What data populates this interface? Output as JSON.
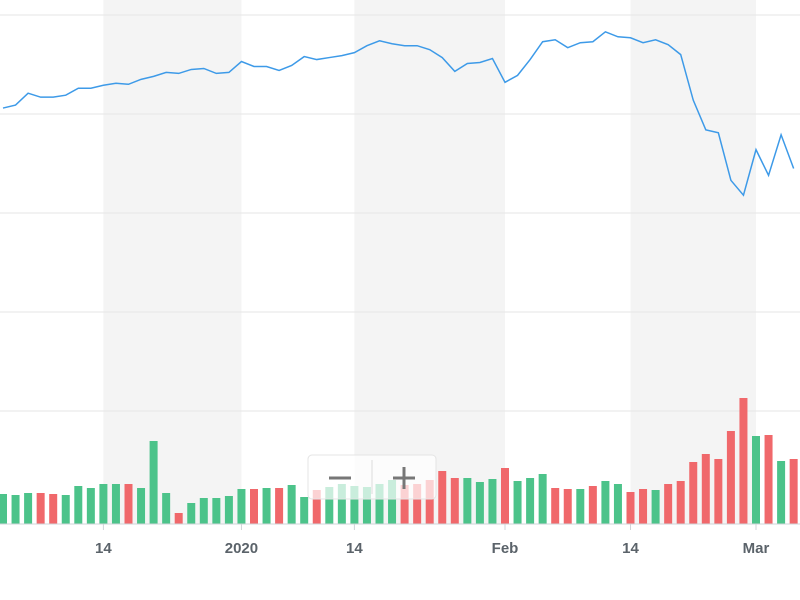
{
  "chart_data": [
    {
      "type": "line",
      "categories": [
        null,
        null,
        null,
        null,
        null,
        null,
        null,
        null,
        "14",
        null,
        null,
        null,
        null,
        null,
        null,
        null,
        null,
        null,
        null,
        "2020",
        null,
        null,
        null,
        null,
        null,
        null,
        null,
        null,
        "14",
        null,
        null,
        null,
        null,
        null,
        null,
        null,
        null,
        null,
        null,
        null,
        "Feb",
        null,
        null,
        null,
        null,
        null,
        null,
        null,
        null,
        null,
        "14",
        null,
        null,
        null,
        null,
        null,
        null,
        null,
        null,
        null,
        "Mar",
        null,
        null,
        null
      ],
      "values": [
        4.06,
        4.09,
        4.21,
        4.17,
        4.17,
        4.19,
        4.26,
        4.26,
        4.29,
        4.31,
        4.3,
        4.35,
        4.38,
        4.42,
        4.41,
        4.45,
        4.46,
        4.41,
        4.42,
        4.53,
        4.48,
        4.48,
        4.44,
        4.49,
        4.58,
        4.55,
        4.57,
        4.59,
        4.62,
        4.69,
        4.74,
        4.71,
        4.69,
        4.69,
        4.65,
        4.57,
        4.43,
        4.51,
        4.52,
        4.56,
        4.32,
        4.39,
        4.55,
        4.73,
        4.75,
        4.67,
        4.72,
        4.73,
        4.83,
        4.78,
        4.77,
        4.72,
        4.75,
        4.7,
        4.6,
        4.14,
        3.84,
        3.81,
        3.33,
        3.18,
        3.64,
        3.38,
        3.79,
        3.45
      ],
      "color": "#3d9ae8",
      "ylim": [
        0,
        5
      ],
      "yticks": [
        1,
        2,
        3,
        4,
        5
      ],
      "grid": true
    },
    {
      "type": "bar",
      "values": [
        15,
        14.5,
        15.5,
        15.5,
        15,
        14.5,
        19,
        18,
        20,
        20,
        20,
        18,
        41.5,
        15.5,
        5.5,
        10.5,
        13,
        13,
        14,
        17.5,
        17.5,
        18,
        18,
        19.5,
        13.5,
        17,
        18.5,
        20,
        19,
        18.5,
        20,
        22,
        19.5,
        20,
        22,
        26.5,
        23,
        23,
        21,
        22.5,
        28,
        21.5,
        23,
        25,
        18,
        17.5,
        17.5,
        19,
        21.5,
        20,
        16,
        17.5,
        17,
        20,
        21.5,
        31,
        35,
        32.5,
        46.5,
        63,
        44,
        44.5,
        31.5,
        32.5
      ],
      "colors": [
        "#4cc38a",
        "#4cc38a",
        "#4cc38a",
        "#f0686b",
        "#f0686b",
        "#4cc38a",
        "#4cc38a",
        "#4cc38a",
        "#4cc38a",
        "#4cc38a",
        "#f0686b",
        "#4cc38a",
        "#4cc38a",
        "#4cc38a",
        "#f0686b",
        "#4cc38a",
        "#4cc38a",
        "#4cc38a",
        "#4cc38a",
        "#4cc38a",
        "#f0686b",
        "#4cc38a",
        "#f0686b",
        "#4cc38a",
        "#4cc38a",
        "#f0686b",
        "#4cc38a",
        "#4cc38a",
        "#4cc38a",
        "#4cc38a",
        "#4cc38a",
        "#4cc38a",
        "#f0686b",
        "#f0686b",
        "#f0686b",
        "#f0686b",
        "#f0686b",
        "#4cc38a",
        "#4cc38a",
        "#4cc38a",
        "#f0686b",
        "#4cc38a",
        "#4cc38a",
        "#4cc38a",
        "#f0686b",
        "#f0686b",
        "#4cc38a",
        "#f0686b",
        "#4cc38a",
        "#4cc38a",
        "#f0686b",
        "#f0686b",
        "#4cc38a",
        "#f0686b",
        "#f0686b",
        "#f0686b",
        "#f0686b",
        "#f0686b",
        "#f0686b",
        "#f0686b",
        "#4cc38a",
        "#f0686b",
        "#4cc38a",
        "#f0686b"
      ],
      "ylim": [
        0,
        100
      ]
    }
  ]
}
